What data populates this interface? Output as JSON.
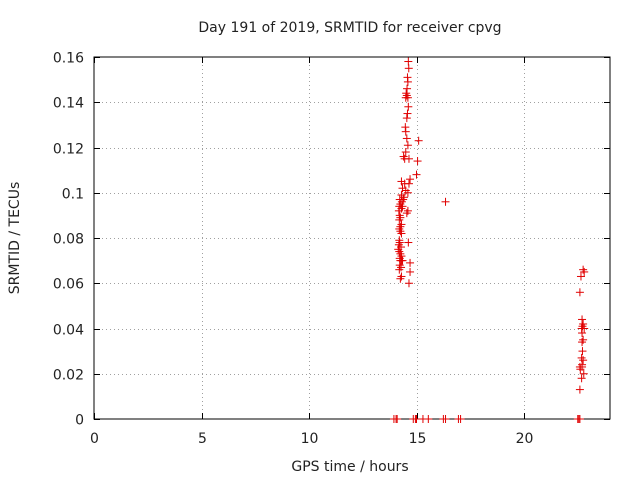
{
  "chart_data": {
    "type": "scatter",
    "title": "Day 191 of 2019, SRMTID for receiver cpvg",
    "xlabel": "GPS time / hours",
    "ylabel": "SRMTID / TECUs",
    "xlim": [
      0,
      24
    ],
    "ylim": [
      0,
      0.16
    ],
    "xticks": [
      0,
      5,
      10,
      15,
      20
    ],
    "xtick_labels": [
      "0",
      "5",
      "10",
      "15",
      "20"
    ],
    "yticks": [
      0,
      0.02,
      0.04,
      0.06,
      0.08,
      0.1,
      0.12,
      0.14,
      0.16
    ],
    "ytick_labels": [
      "0",
      "0.02",
      "0.04",
      "0.06",
      "0.08",
      "0.1",
      "0.12",
      "0.14",
      "0.16"
    ],
    "grid": true,
    "marker": "plus",
    "color": "#e00000",
    "series": [
      {
        "name": "SRMTID",
        "x": [
          14.62,
          14.64,
          14.58,
          14.6,
          14.56,
          14.52,
          14.5,
          14.55,
          14.6,
          14.62,
          14.58,
          14.55,
          14.48,
          14.5,
          14.55,
          14.6,
          14.5,
          14.45,
          14.65,
          15.1,
          14.4,
          15.05,
          14.3,
          14.7,
          15.0,
          14.45,
          14.65,
          14.35,
          14.5,
          14.6,
          14.3,
          14.42,
          14.38,
          14.22,
          14.32,
          14.25,
          14.2,
          14.35,
          14.3,
          14.6,
          14.18,
          14.22,
          14.55,
          14.25,
          14.2,
          14.3,
          14.25,
          14.2,
          14.25,
          14.3,
          14.2,
          14.18,
          14.22,
          14.28,
          14.15,
          14.62,
          14.2,
          14.25,
          14.3,
          14.22,
          14.25,
          14.35,
          14.22,
          14.28,
          14.2,
          14.7,
          14.3,
          14.25,
          14.7,
          14.3,
          14.65,
          16.35,
          22.75,
          22.8,
          22.65,
          22.6,
          22.7,
          22.75,
          22.72,
          22.68,
          22.8,
          22.7,
          22.75,
          22.7,
          22.72,
          22.68,
          22.75,
          22.7,
          22.78,
          22.7,
          22.6,
          22.62,
          22.68,
          22.6,
          13.95,
          14.05,
          14.1,
          14.85,
          14.95,
          15.0,
          15.3,
          15.55,
          16.25,
          16.35,
          16.95,
          17.05,
          22.5,
          22.55,
          22.6
        ],
        "y": [
          0.158,
          0.155,
          0.151,
          0.149,
          0.146,
          0.144,
          0.142,
          0.143,
          0.142,
          0.138,
          0.135,
          0.133,
          0.129,
          0.127,
          0.124,
          0.121,
          0.118,
          0.115,
          0.115,
          0.123,
          0.116,
          0.114,
          0.105,
          0.106,
          0.108,
          0.104,
          0.104,
          0.102,
          0.101,
          0.1,
          0.099,
          0.098,
          0.097,
          0.097,
          0.096,
          0.095,
          0.094,
          0.094,
          0.093,
          0.092,
          0.092,
          0.09,
          0.091,
          0.089,
          0.088,
          0.086,
          0.085,
          0.084,
          0.083,
          0.082,
          0.079,
          0.077,
          0.078,
          0.076,
          0.075,
          0.078,
          0.074,
          0.073,
          0.072,
          0.071,
          0.07,
          0.07,
          0.068,
          0.067,
          0.066,
          0.069,
          0.063,
          0.062,
          0.065,
          0.07,
          0.06,
          0.096,
          0.066,
          0.065,
          0.063,
          0.056,
          0.044,
          0.042,
          0.041,
          0.04,
          0.04,
          0.038,
          0.035,
          0.034,
          0.03,
          0.027,
          0.026,
          0.024,
          0.02,
          0.023,
          0.023,
          0.022,
          0.018,
          0.013,
          0.0,
          0.0,
          0.0,
          0.0,
          0.0,
          0.0,
          0.0,
          0.0,
          0.0,
          0.0,
          0.0,
          0.0,
          0.0,
          0.0,
          0.0
        ]
      }
    ]
  }
}
